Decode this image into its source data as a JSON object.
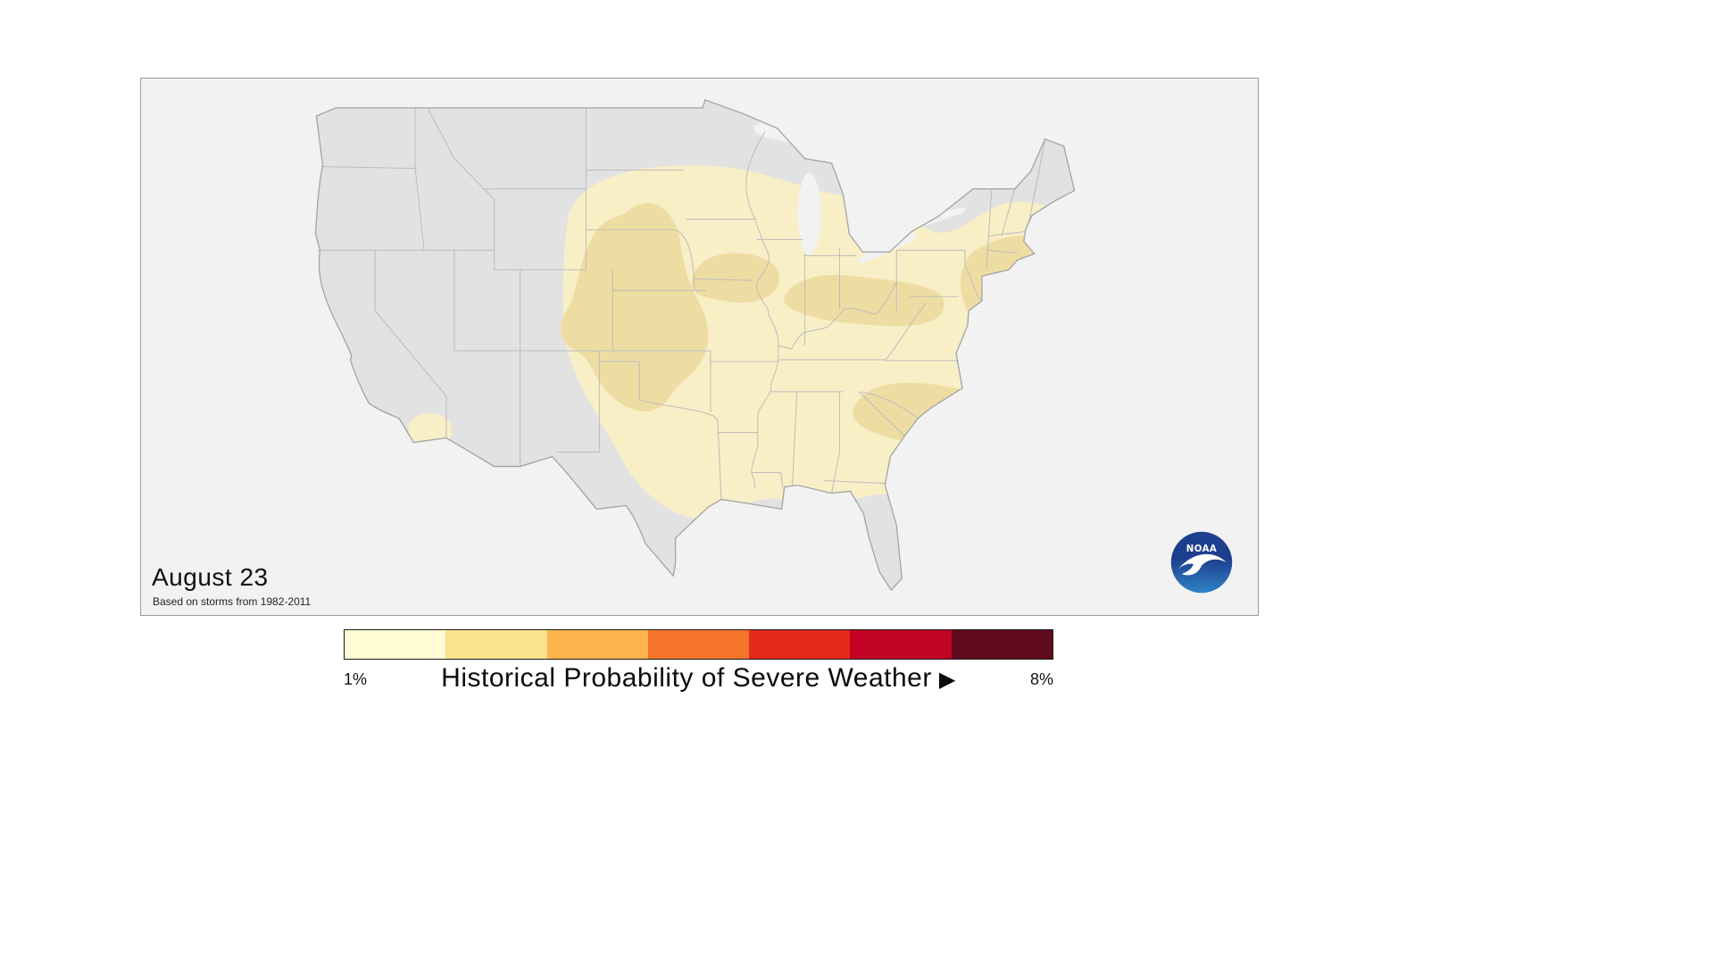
{
  "map_panel": {
    "date_label": "August 23",
    "source_note": "Based on storms from 1982-2011",
    "colors": {
      "panel_bg": "#f2f2f2",
      "land": "#e2e2e2",
      "state_border": "#bcbcbc",
      "coastline": "#a3a3a3",
      "lake": "#f2f2f2",
      "prob_low": "#f8efc7",
      "prob_mid": "#eedda2"
    }
  },
  "logo": {
    "name": "NOAA",
    "text": "NOAA",
    "sky_color": "#1e3f8f",
    "sea_color": "#2f83c5"
  },
  "legend": {
    "title": "Historical Probability of Severe Weather",
    "arrow": "▶",
    "min_label": "1%",
    "max_label": "8%",
    "min_value": 1,
    "max_value": 8,
    "unit": "%",
    "colors": [
      "#FFFBD4",
      "#FBE38B",
      "#FBB44C",
      "#F4752B",
      "#E5291A",
      "#C20325",
      "#5E0A1C"
    ]
  }
}
